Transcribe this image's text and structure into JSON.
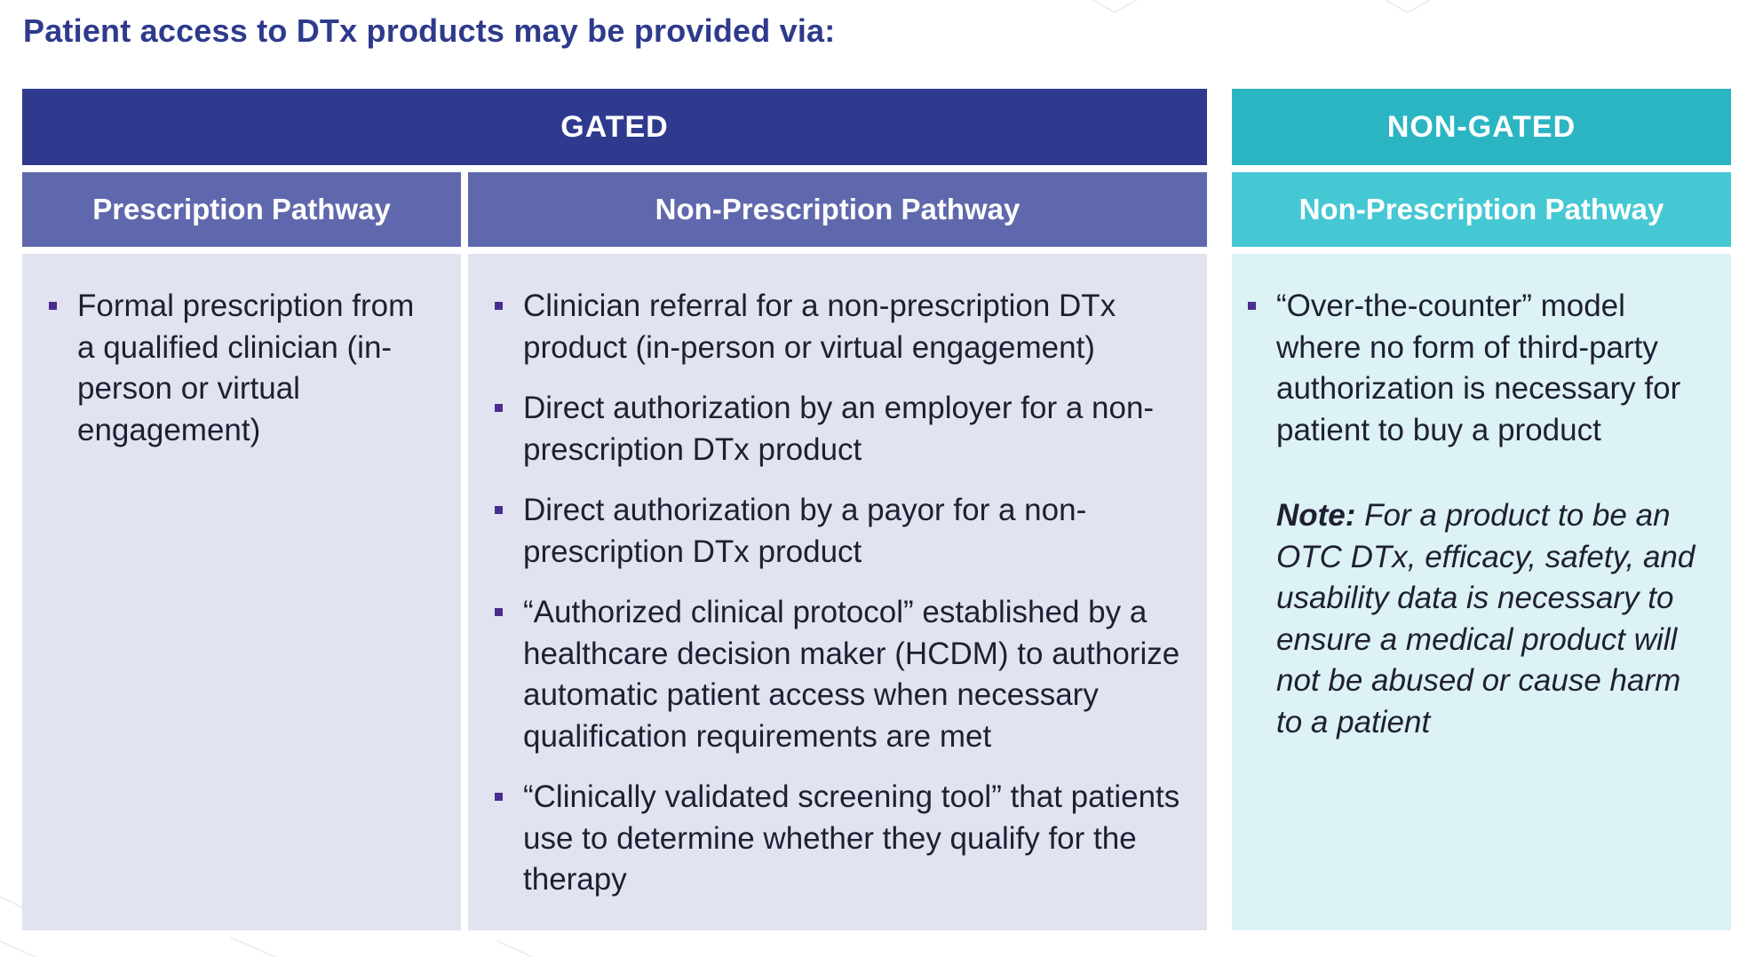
{
  "title": "Patient access to DTx products may be provided via:",
  "colors": {
    "title": "#2e3a8c",
    "gated_header": "#2f3a8f",
    "gated_subheader": "#6068ad",
    "gated_body": "#e1e3f0",
    "nongated_header": "#2bb5c3",
    "nongated_subheader": "#45c8d4",
    "nongated_body": "#dcf2f4",
    "bullet": "#4a2d8f"
  },
  "gated": {
    "label": "GATED",
    "prescription": {
      "heading": "Prescription Pathway",
      "items": [
        "Formal prescription from a qualified clinician (in-person or virtual engagement)"
      ]
    },
    "non_prescription": {
      "heading": "Non-Prescription Pathway",
      "items": [
        "Clinician referral for a non-prescription DTx product (in-person or virtual engagement)",
        "Direct authorization by an employer for a non-prescription DTx product",
        "Direct authorization by a payor for a non-prescription DTx product",
        "“Authorized clinical protocol” established by a healthcare decision maker (HCDM) to authorize automatic patient access when necessary qualification requirements are met",
        "“Clinically validated screening tool” that patients use to determine whether they qualify for the therapy"
      ]
    }
  },
  "non_gated": {
    "label": "NON-GATED",
    "non_prescription": {
      "heading": "Non-Prescription Pathway",
      "items": [
        "“Over-the-counter” model where no form of third-party authorization is necessary for patient to buy a product"
      ],
      "note_label": "Note:",
      "note_text": " For a product to be an OTC DTx, efficacy, safety, and usability data is necessary to ensure a medical product will not be abused or cause harm to a patient"
    }
  }
}
